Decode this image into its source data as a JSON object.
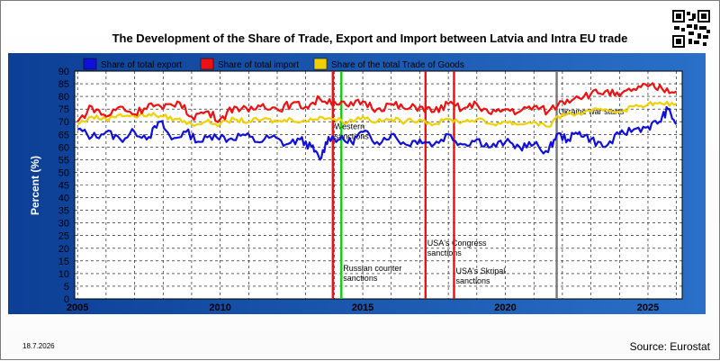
{
  "colors": {
    "export": "#1010d8",
    "import": "#ee1111",
    "trade": "#f0d000",
    "plot_bg": "#ffffff",
    "outer_bg": "#0f4aa0"
  },
  "chart_data": {
    "type": "line",
    "title": "The Development of the Share of Trade, Export and Import between Latvia and Intra EU trade",
    "ylabel": "Percent (%)",
    "xlabel": "",
    "xlim": [
      2004.9,
      2026.2
    ],
    "ylim": [
      0,
      90
    ],
    "yticks": [
      0,
      5,
      10,
      15,
      20,
      25,
      30,
      35,
      40,
      45,
      50,
      55,
      60,
      65,
      70,
      75,
      80,
      85,
      90
    ],
    "xticks": [
      2005,
      2010,
      2015,
      2020,
      2025
    ],
    "grid": true,
    "legend_position": "top",
    "series": [
      {
        "name": "Share of total export",
        "color": "#1010d8",
        "x": [
          2005.0,
          2005.5,
          2006.0,
          2006.5,
          2007.0,
          2007.5,
          2007.9,
          2008.3,
          2008.8,
          2009.3,
          2009.8,
          2010.3,
          2010.8,
          2011.3,
          2011.8,
          2012.3,
          2012.8,
          2013.2,
          2013.5,
          2013.8,
          2014.2,
          2014.6,
          2015.0,
          2015.5,
          2016.0,
          2016.5,
          2017.0,
          2017.5,
          2018.0,
          2018.5,
          2019.0,
          2019.5,
          2020.0,
          2020.5,
          2021.0,
          2021.5,
          2021.8,
          2022.2,
          2022.6,
          2023.0,
          2023.5,
          2024.0,
          2024.5,
          2025.0,
          2025.4,
          2025.7,
          2026.0
        ],
        "y": [
          67,
          64,
          66,
          63,
          66,
          64,
          70,
          63,
          66,
          62,
          65,
          63,
          65,
          62,
          64,
          61,
          63,
          60,
          55,
          64,
          63,
          62,
          66,
          62,
          65,
          61,
          63,
          61,
          65,
          61,
          63,
          60,
          62,
          60,
          61,
          58,
          65,
          63,
          66,
          63,
          60,
          65,
          67,
          68,
          70,
          75,
          69
        ]
      },
      {
        "name": "Share of total import",
        "color": "#ee1111",
        "x": [
          2005.0,
          2005.5,
          2006.0,
          2006.5,
          2007.0,
          2007.5,
          2008.0,
          2008.5,
          2009.0,
          2009.5,
          2010.0,
          2010.5,
          2011.0,
          2011.5,
          2012.0,
          2012.5,
          2013.0,
          2013.5,
          2014.0,
          2014.5,
          2015.0,
          2015.5,
          2016.0,
          2016.5,
          2017.0,
          2017.5,
          2018.0,
          2018.5,
          2019.0,
          2019.5,
          2020.0,
          2020.5,
          2021.0,
          2021.5,
          2022.0,
          2022.5,
          2023.0,
          2023.5,
          2024.0,
          2024.5,
          2025.0,
          2025.5,
          2026.0
        ],
        "y": [
          70,
          76,
          72,
          76,
          73,
          77,
          75,
          78,
          72,
          74,
          71,
          76,
          74,
          77,
          75,
          77,
          76,
          79,
          78,
          76,
          78,
          75,
          77,
          75,
          76,
          74,
          77,
          75,
          77,
          73,
          75,
          74,
          76,
          74,
          78,
          80,
          81,
          82,
          80,
          83,
          84,
          83,
          82
        ]
      },
      {
        "name": "Share of the total Trade of Goods",
        "color": "#f0d000",
        "x": [
          2005.0,
          2005.5,
          2006.0,
          2006.5,
          2007.0,
          2007.5,
          2008.0,
          2008.5,
          2009.0,
          2009.5,
          2010.0,
          2010.5,
          2011.0,
          2011.5,
          2012.0,
          2012.5,
          2013.0,
          2013.5,
          2014.0,
          2014.5,
          2015.0,
          2015.5,
          2016.0,
          2016.5,
          2017.0,
          2017.5,
          2018.0,
          2018.5,
          2019.0,
          2019.5,
          2020.0,
          2020.5,
          2021.0,
          2021.5,
          2022.0,
          2022.5,
          2023.0,
          2023.5,
          2024.0,
          2024.5,
          2025.0,
          2025.5,
          2026.0
        ],
        "y": [
          69,
          72,
          71,
          73,
          72,
          73,
          72,
          71,
          69,
          70,
          69,
          71,
          70,
          71,
          70,
          71,
          70,
          72,
          71,
          70,
          72,
          70,
          71,
          70,
          71,
          69,
          71,
          70,
          71,
          69,
          70,
          69,
          70,
          68,
          73,
          73,
          74,
          75,
          74,
          76,
          77,
          77,
          77
        ]
      }
    ],
    "events": [
      {
        "x": 2013.95,
        "color": "#ee1111",
        "label_lines": [
          "Western",
          "sanctions"
        ],
        "label_y": 67
      },
      {
        "x": 2014.25,
        "color": "#11cc11",
        "label_lines": [
          "Russian counter",
          "sanctions"
        ],
        "label_y": 11
      },
      {
        "x": 2017.2,
        "color": "#ee1111",
        "label_lines": [
          "USA's Congress",
          "sanctions"
        ],
        "label_y": 21
      },
      {
        "x": 2018.2,
        "color": "#ee1111",
        "label_lines": [
          "USA's Skripal",
          "sanctions"
        ],
        "label_y": 10
      },
      {
        "x": 2021.8,
        "color": "#777777",
        "label_lines": [
          "Ukraine war starts"
        ],
        "label_y": 73
      }
    ]
  },
  "footer": {
    "date": "18.7.2026",
    "source": "Source: Eurostat"
  }
}
